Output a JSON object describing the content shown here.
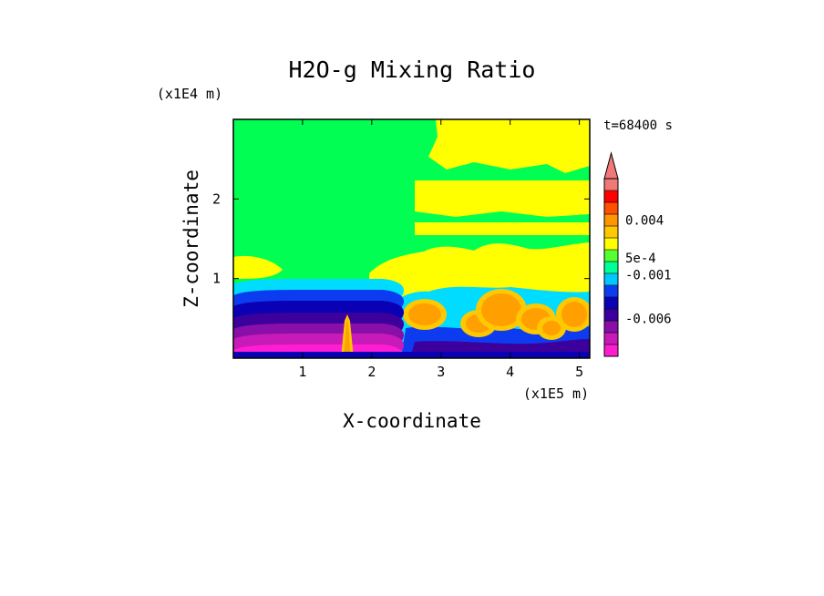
{
  "chart_data": {
    "type": "heatmap",
    "title": "H2O-g Mixing Ratio",
    "time_label": "t=68400 s",
    "xlabel": "X-coordinate",
    "ylabel": "Z-coordinate",
    "x_scale_label": "(x1E5 m)",
    "y_scale_label": "(x1E4 m)",
    "xlim": [
      0,
      5.15
    ],
    "ylim": [
      0,
      3.0
    ],
    "x_ticks": [
      {
        "value": 1,
        "label": "1"
      },
      {
        "value": 2,
        "label": "2"
      },
      {
        "value": 3,
        "label": "3"
      },
      {
        "value": 4,
        "label": "4"
      },
      {
        "value": 5,
        "label": "5"
      }
    ],
    "y_ticks": [
      {
        "value": 1,
        "label": "1"
      },
      {
        "value": 2,
        "label": "2"
      }
    ],
    "colorbar": {
      "colors": [
        "#ff1dd2",
        "#c81ab8",
        "#8a0fa8",
        "#3c009c",
        "#0a00b4",
        "#0d3cf0",
        "#00c8ff",
        "#00ff96",
        "#55ff30",
        "#ffff00",
        "#ffc800",
        "#ff9600",
        "#ff5000",
        "#ff0000",
        "#f07878"
      ],
      "labels": [
        {
          "text": "-0.006",
          "level": 3.2
        },
        {
          "text": "-0.001",
          "level": 6.9
        },
        {
          "text": "5e-4",
          "level": 8.3
        },
        {
          "text": "0.004",
          "level": 11.5
        }
      ]
    },
    "field_colors": {
      "background": "#00ff52",
      "yellow": "#ffff00",
      "orange": "#ff9f00",
      "light_orange": "#ffc800",
      "cyan": "#00dcff",
      "blue": "#0d3cf0",
      "navy": "#0a00b4",
      "violet": "#3c009c",
      "purple": "#8a0fa8",
      "magenta": "#c81ab8",
      "pink": "#ff1dd2"
    }
  }
}
